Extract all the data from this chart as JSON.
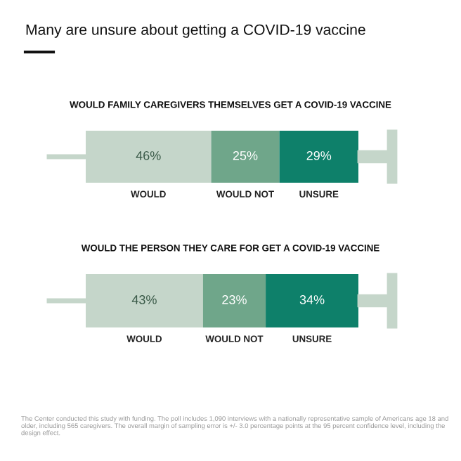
{
  "chart_data": [
    {
      "type": "bar",
      "title": "Many are unsure about getting a COVID-19 vaccine",
      "subtitle": "WOULD FAMILY CAREGIVERS THEMSELVES GET A COVID-19 VACCINE",
      "orientation": "horizontal",
      "stacked": true,
      "tick_labels": false,
      "categories": [
        null
      ],
      "series": [
        {
          "name": "WOULD",
          "color": "#c5d6ca",
          "values": [
            46
          ],
          "value_labels": [
            "46%"
          ]
        },
        {
          "name": "WOULD NOT",
          "color": "#6fa68a",
          "values": [
            25
          ],
          "value_labels": [
            "25%"
          ]
        },
        {
          "name": "UNSURE",
          "color": "#0e806a",
          "values": [
            29
          ],
          "value_labels": [
            "29%"
          ]
        }
      ]
    },
    {
      "type": "bar",
      "subtitle": "WOULD THE PERSON THEY CARE FOR GET A COVID-19 VACCINE",
      "orientation": "horizontal",
      "stacked": true,
      "tick_labels": false,
      "categories": [
        null
      ],
      "series": [
        {
          "name": "WOULD",
          "color": "#c5d6ca",
          "values": [
            43
          ],
          "value_labels": [
            "43%"
          ]
        },
        {
          "name": "WOULD NOT",
          "color": "#6fa68a",
          "values": [
            23
          ],
          "value_labels": [
            "23%"
          ]
        },
        {
          "name": "UNSURE",
          "color": "#0e806a",
          "values": [
            34
          ],
          "value_labels": [
            "34%"
          ]
        }
      ],
      "annotations": [
        "The Center conducted this study with funding. The poll includes 1,090 interviews with a nationally representative sample of Americans age 18 and older, including 565 caregivers. The overall margin of sampling error is +/- 3.0 percentage points at the 95 percent confidence level, including the design effect."
      ]
    }
  ]
}
